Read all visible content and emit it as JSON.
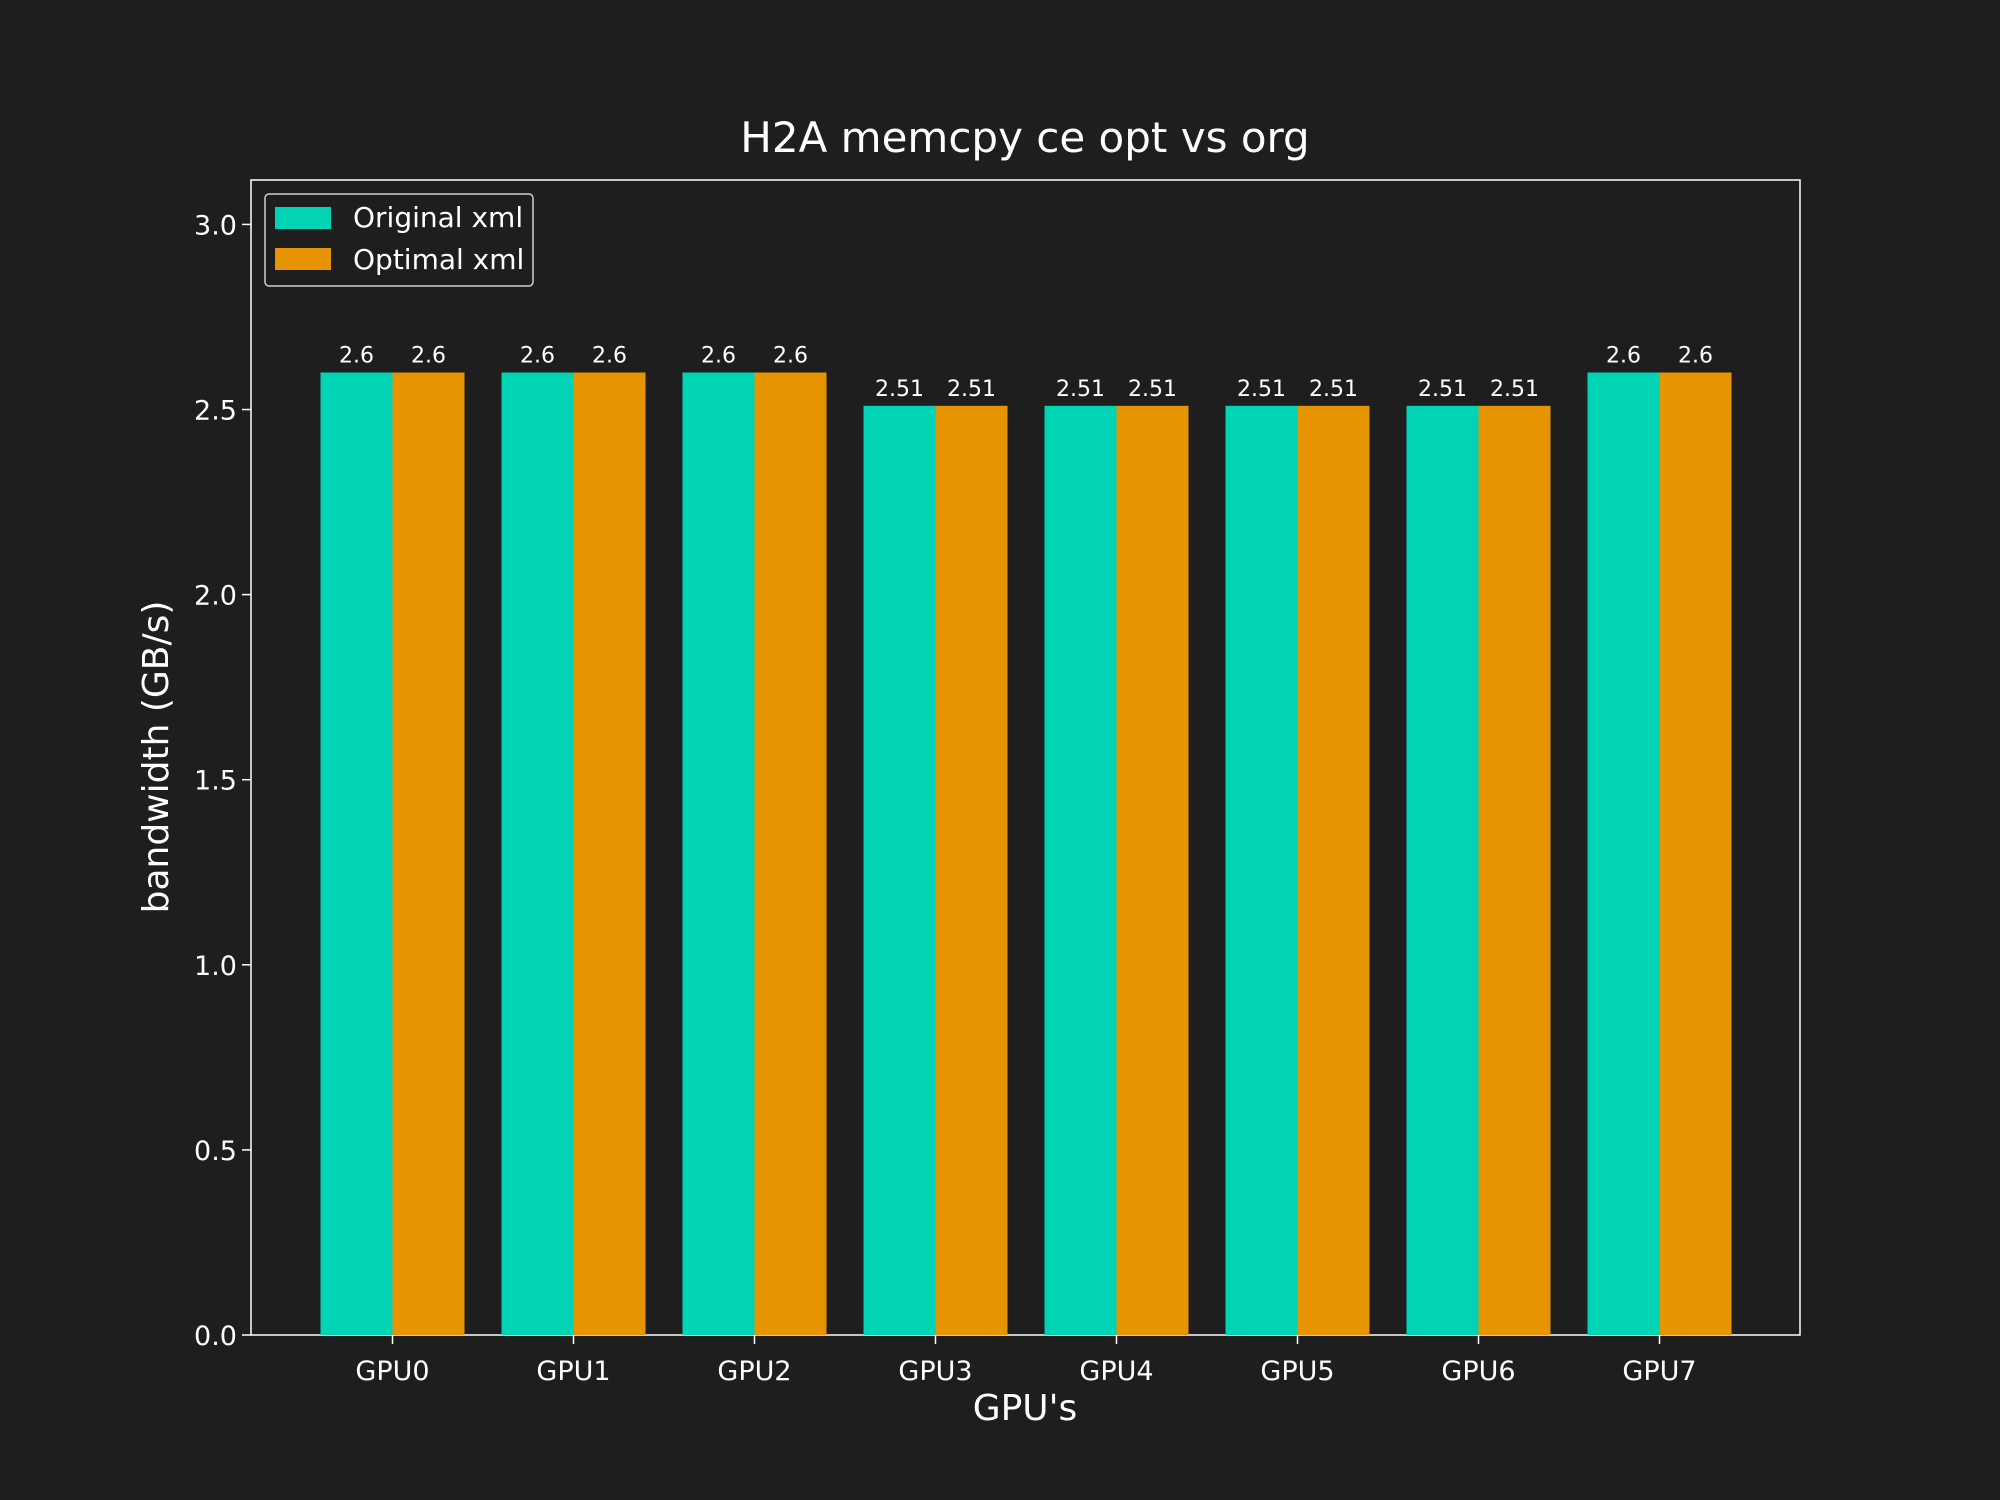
{
  "chart_data": {
    "type": "bar",
    "title": "H2A memcpy ce opt vs org",
    "xlabel": "GPU's",
    "ylabel": "bandwidth (GB/s)",
    "categories": [
      "GPU0",
      "GPU1",
      "GPU2",
      "GPU3",
      "GPU4",
      "GPU5",
      "GPU6",
      "GPU7"
    ],
    "series": [
      {
        "name": "Original xml",
        "color": "#00d4b4",
        "values": [
          2.6,
          2.6,
          2.6,
          2.51,
          2.51,
          2.51,
          2.51,
          2.6
        ],
        "labels": [
          "2.6",
          "2.6",
          "2.6",
          "2.51",
          "2.51",
          "2.51",
          "2.51",
          "2.6"
        ]
      },
      {
        "name": "Optimal xml",
        "color": "#e69500",
        "values": [
          2.6,
          2.6,
          2.6,
          2.51,
          2.51,
          2.51,
          2.51,
          2.6
        ],
        "labels": [
          "2.6",
          "2.6",
          "2.6",
          "2.51",
          "2.51",
          "2.51",
          "2.51",
          "2.6"
        ]
      }
    ],
    "ylim": [
      0,
      3.12
    ],
    "yticks": [
      0.0,
      0.5,
      1.0,
      1.5,
      2.0,
      2.5,
      3.0
    ],
    "ytick_labels": [
      "0.0",
      "0.5",
      "1.0",
      "1.5",
      "2.0",
      "2.5",
      "3.0"
    ],
    "grid": false,
    "legend": "top-left",
    "background": "#1e1e1e",
    "axes_color": "#ffffff"
  }
}
